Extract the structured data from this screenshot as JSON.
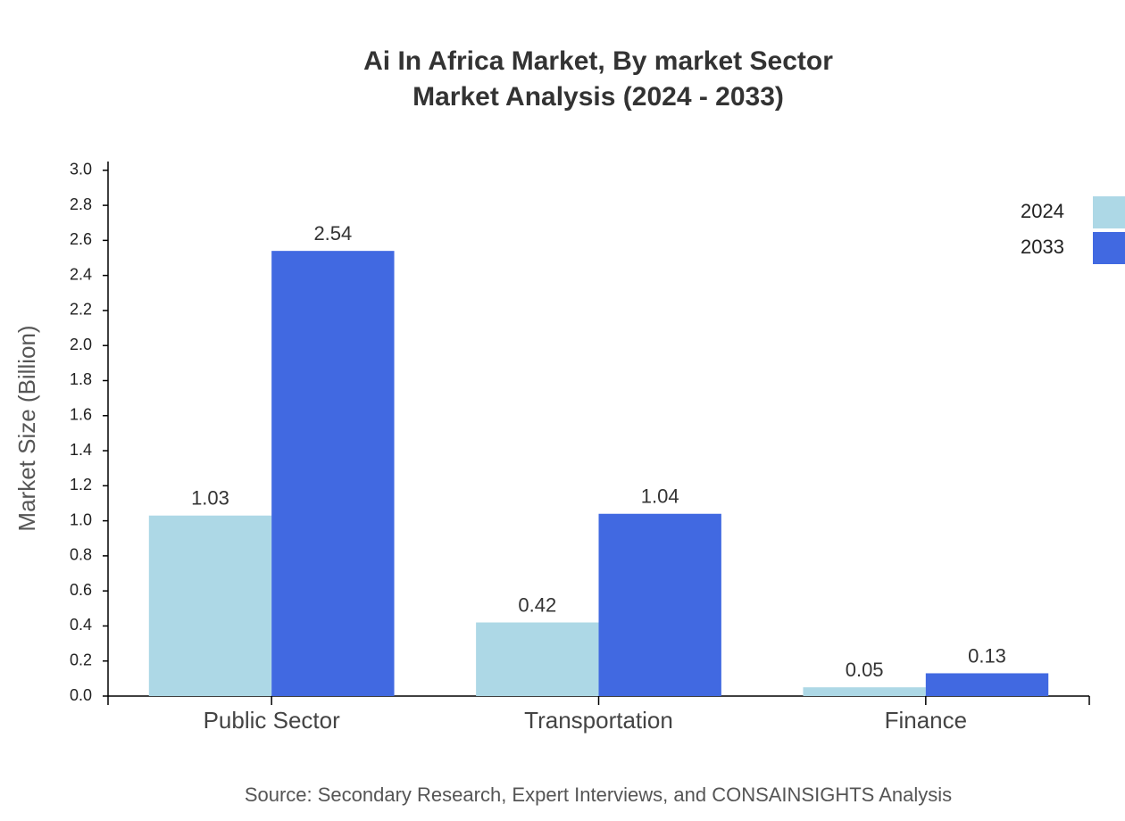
{
  "chart_data": {
    "type": "bar",
    "title": "Ai In Africa Market, By market Sector",
    "subtitle": "Market Analysis (2024 - 2033)",
    "y_label": "Market Size (Billion)",
    "source": "Source: Secondary Research, Expert Interviews, and CONSAINSIGHTS Analysis",
    "categories": [
      "Public Sector",
      "Transportation",
      "Finance"
    ],
    "series": [
      {
        "name": "2024",
        "color": "#add8e6",
        "values": [
          1.03,
          0.42,
          0.05
        ]
      },
      {
        "name": "2033",
        "color": "#4169e1",
        "values": [
          2.54,
          1.04,
          0.13
        ]
      }
    ],
    "ylim": [
      0,
      3.05
    ],
    "yticks": [
      {
        "value": 0,
        "label": "0.0"
      },
      0.2,
      0.4,
      0.6,
      0.8,
      {
        "value": 1,
        "label": "1.0"
      },
      1.2,
      1.4,
      1.6,
      1.8,
      {
        "value": 2,
        "label": "2.0"
      },
      2.2,
      2.4,
      2.6,
      2.8,
      {
        "value": 3,
        "label": "3.0"
      }
    ],
    "legend": "top-right"
  }
}
